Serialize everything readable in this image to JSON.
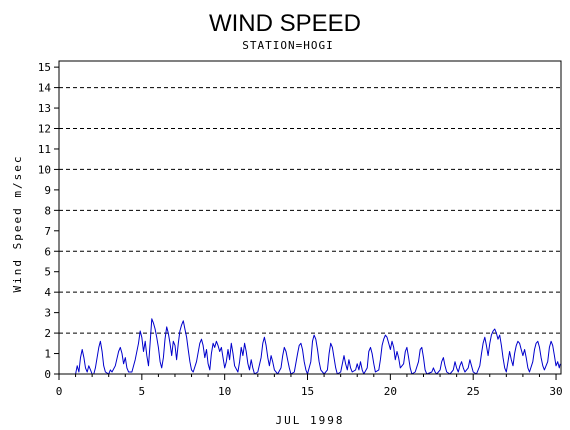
{
  "chart_data": {
    "type": "line",
    "title": "WIND SPEED",
    "subtitle": "STATION=HOGI",
    "xlabel": "JUL 1998",
    "ylabel": "Wind Speed m/sec",
    "xlim": [
      0,
      30.3
    ],
    "ylim": [
      0,
      15.3
    ],
    "x_ticks": [
      0,
      5,
      10,
      15,
      20,
      25,
      30
    ],
    "y_ticks": [
      0,
      1,
      2,
      3,
      4,
      5,
      6,
      7,
      8,
      9,
      10,
      11,
      12,
      13,
      14,
      15
    ],
    "grid": {
      "horizontal_dashed_at": [
        2,
        4,
        6,
        8,
        10,
        12,
        14
      ],
      "baseline_dashed": true
    },
    "line_color": "#0000cc",
    "series": [
      {
        "values": [
          [
            1.0,
            0.0
          ],
          [
            1.1,
            0.4
          ],
          [
            1.2,
            0.1
          ],
          [
            1.3,
            0.8
          ],
          [
            1.4,
            1.2
          ],
          [
            1.5,
            0.8
          ],
          [
            1.6,
            0.3
          ],
          [
            1.7,
            0.1
          ],
          [
            1.8,
            0.4
          ],
          [
            1.9,
            0.2
          ],
          [
            2.0,
            0.0
          ],
          [
            2.1,
            0.0
          ],
          [
            2.2,
            0.3
          ],
          [
            2.4,
            1.3
          ],
          [
            2.5,
            1.6
          ],
          [
            2.6,
            1.1
          ],
          [
            2.7,
            0.4
          ],
          [
            2.8,
            0.1
          ],
          [
            3.0,
            0.0
          ],
          [
            3.1,
            0.2
          ],
          [
            3.2,
            0.1
          ],
          [
            3.4,
            0.4
          ],
          [
            3.6,
            1.1
          ],
          [
            3.7,
            1.3
          ],
          [
            3.8,
            1.0
          ],
          [
            3.9,
            0.5
          ],
          [
            4.0,
            0.8
          ],
          [
            4.1,
            0.3
          ],
          [
            4.2,
            0.1
          ],
          [
            4.4,
            0.1
          ],
          [
            4.6,
            0.7
          ],
          [
            4.8,
            1.5
          ],
          [
            4.9,
            2.1
          ],
          [
            5.0,
            1.8
          ],
          [
            5.1,
            1.1
          ],
          [
            5.2,
            1.6
          ],
          [
            5.3,
            0.9
          ],
          [
            5.4,
            0.4
          ],
          [
            5.5,
            1.5
          ],
          [
            5.6,
            2.7
          ],
          [
            5.7,
            2.5
          ],
          [
            5.8,
            2.2
          ],
          [
            5.9,
            1.8
          ],
          [
            6.0,
            1.3
          ],
          [
            6.1,
            0.6
          ],
          [
            6.2,
            0.3
          ],
          [
            6.3,
            0.8
          ],
          [
            6.4,
            1.7
          ],
          [
            6.5,
            2.3
          ],
          [
            6.6,
            2.0
          ],
          [
            6.7,
            1.5
          ],
          [
            6.8,
            0.9
          ],
          [
            6.9,
            1.6
          ],
          [
            7.0,
            1.4
          ],
          [
            7.1,
            0.7
          ],
          [
            7.2,
            1.5
          ],
          [
            7.3,
            2.1
          ],
          [
            7.4,
            2.4
          ],
          [
            7.5,
            2.6
          ],
          [
            7.6,
            2.2
          ],
          [
            7.7,
            1.8
          ],
          [
            7.8,
            1.2
          ],
          [
            7.9,
            0.6
          ],
          [
            8.0,
            0.2
          ],
          [
            8.1,
            0.1
          ],
          [
            8.3,
            0.6
          ],
          [
            8.5,
            1.5
          ],
          [
            8.6,
            1.7
          ],
          [
            8.7,
            1.4
          ],
          [
            8.8,
            0.8
          ],
          [
            8.9,
            1.2
          ],
          [
            9.0,
            0.5
          ],
          [
            9.1,
            0.2
          ],
          [
            9.2,
            1.0
          ],
          [
            9.3,
            1.5
          ],
          [
            9.4,
            1.3
          ],
          [
            9.5,
            1.6
          ],
          [
            9.6,
            1.4
          ],
          [
            9.7,
            1.1
          ],
          [
            9.8,
            1.3
          ],
          [
            9.9,
            0.8
          ],
          [
            10.0,
            0.3
          ],
          [
            10.1,
            0.6
          ],
          [
            10.2,
            1.2
          ],
          [
            10.3,
            0.7
          ],
          [
            10.4,
            1.5
          ],
          [
            10.5,
            1.0
          ],
          [
            10.6,
            0.4
          ],
          [
            10.8,
            0.1
          ],
          [
            10.9,
            0.6
          ],
          [
            11.0,
            1.3
          ],
          [
            11.1,
            0.9
          ],
          [
            11.2,
            1.5
          ],
          [
            11.3,
            1.1
          ],
          [
            11.4,
            0.5
          ],
          [
            11.5,
            0.2
          ],
          [
            11.6,
            0.7
          ],
          [
            11.7,
            0.3
          ],
          [
            11.8,
            0.0
          ],
          [
            12.0,
            0.1
          ],
          [
            12.2,
            0.8
          ],
          [
            12.3,
            1.5
          ],
          [
            12.4,
            1.8
          ],
          [
            12.5,
            1.4
          ],
          [
            12.6,
            0.8
          ],
          [
            12.7,
            0.4
          ],
          [
            12.8,
            0.9
          ],
          [
            12.9,
            0.6
          ],
          [
            13.0,
            0.2
          ],
          [
            13.2,
            0.0
          ],
          [
            13.4,
            0.3
          ],
          [
            13.5,
            0.9
          ],
          [
            13.6,
            1.3
          ],
          [
            13.7,
            1.1
          ],
          [
            13.8,
            0.7
          ],
          [
            13.9,
            0.3
          ],
          [
            14.0,
            0.0
          ],
          [
            14.2,
            0.1
          ],
          [
            14.4,
            1.0
          ],
          [
            14.5,
            1.4
          ],
          [
            14.6,
            1.5
          ],
          [
            14.7,
            1.2
          ],
          [
            14.8,
            0.6
          ],
          [
            14.9,
            0.2
          ],
          [
            15.0,
            0.0
          ],
          [
            15.2,
            0.6
          ],
          [
            15.3,
            1.6
          ],
          [
            15.4,
            1.9
          ],
          [
            15.5,
            1.7
          ],
          [
            15.6,
            1.2
          ],
          [
            15.7,
            0.6
          ],
          [
            15.8,
            0.2
          ],
          [
            16.0,
            0.0
          ],
          [
            16.2,
            0.2
          ],
          [
            16.3,
            1.0
          ],
          [
            16.4,
            1.5
          ],
          [
            16.5,
            1.3
          ],
          [
            16.6,
            0.8
          ],
          [
            16.7,
            0.3
          ],
          [
            16.8,
            0.0
          ],
          [
            17.0,
            0.1
          ],
          [
            17.2,
            0.9
          ],
          [
            17.3,
            0.5
          ],
          [
            17.4,
            0.2
          ],
          [
            17.5,
            0.7
          ],
          [
            17.6,
            0.3
          ],
          [
            17.7,
            0.1
          ],
          [
            17.9,
            0.2
          ],
          [
            18.0,
            0.5
          ],
          [
            18.1,
            0.2
          ],
          [
            18.2,
            0.6
          ],
          [
            18.3,
            0.2
          ],
          [
            18.4,
            0.0
          ],
          [
            18.6,
            0.3
          ],
          [
            18.7,
            1.1
          ],
          [
            18.8,
            1.3
          ],
          [
            18.9,
            1.0
          ],
          [
            19.0,
            0.5
          ],
          [
            19.1,
            0.1
          ],
          [
            19.3,
            0.2
          ],
          [
            19.4,
            0.7
          ],
          [
            19.5,
            1.4
          ],
          [
            19.6,
            1.7
          ],
          [
            19.7,
            1.9
          ],
          [
            19.8,
            1.8
          ],
          [
            19.9,
            1.5
          ],
          [
            20.0,
            1.2
          ],
          [
            20.1,
            1.6
          ],
          [
            20.2,
            1.3
          ],
          [
            20.3,
            0.7
          ],
          [
            20.4,
            1.1
          ],
          [
            20.5,
            0.8
          ],
          [
            20.6,
            0.3
          ],
          [
            20.8,
            0.5
          ],
          [
            20.9,
            1.1
          ],
          [
            21.0,
            1.3
          ],
          [
            21.1,
            0.8
          ],
          [
            21.2,
            0.3
          ],
          [
            21.3,
            0.0
          ],
          [
            21.5,
            0.1
          ],
          [
            21.7,
            0.6
          ],
          [
            21.8,
            1.2
          ],
          [
            21.9,
            1.3
          ],
          [
            22.0,
            0.8
          ],
          [
            22.1,
            0.2
          ],
          [
            22.2,
            0.0
          ],
          [
            22.5,
            0.1
          ],
          [
            22.6,
            0.3
          ],
          [
            22.7,
            0.1
          ],
          [
            22.8,
            0.0
          ],
          [
            23.0,
            0.2
          ],
          [
            23.1,
            0.6
          ],
          [
            23.2,
            0.8
          ],
          [
            23.3,
            0.4
          ],
          [
            23.4,
            0.1
          ],
          [
            23.6,
            0.0
          ],
          [
            23.8,
            0.2
          ],
          [
            23.9,
            0.6
          ],
          [
            24.0,
            0.3
          ],
          [
            24.1,
            0.1
          ],
          [
            24.2,
            0.4
          ],
          [
            24.3,
            0.6
          ],
          [
            24.4,
            0.3
          ],
          [
            24.5,
            0.1
          ],
          [
            24.7,
            0.3
          ],
          [
            24.8,
            0.7
          ],
          [
            24.9,
            0.4
          ],
          [
            25.0,
            0.1
          ],
          [
            25.2,
            0.0
          ],
          [
            25.4,
            0.4
          ],
          [
            25.5,
            1.0
          ],
          [
            25.6,
            1.5
          ],
          [
            25.7,
            1.8
          ],
          [
            25.8,
            1.4
          ],
          [
            25.9,
            0.9
          ],
          [
            26.0,
            1.5
          ],
          [
            26.1,
            1.9
          ],
          [
            26.2,
            2.1
          ],
          [
            26.3,
            2.2
          ],
          [
            26.4,
            2.0
          ],
          [
            26.5,
            1.7
          ],
          [
            26.6,
            1.9
          ],
          [
            26.7,
            1.4
          ],
          [
            26.8,
            0.8
          ],
          [
            26.9,
            0.3
          ],
          [
            27.0,
            0.1
          ],
          [
            27.1,
            0.6
          ],
          [
            27.2,
            1.1
          ],
          [
            27.3,
            0.7
          ],
          [
            27.4,
            0.4
          ],
          [
            27.5,
            1.0
          ],
          [
            27.6,
            1.4
          ],
          [
            27.7,
            1.6
          ],
          [
            27.8,
            1.5
          ],
          [
            27.9,
            1.2
          ],
          [
            28.0,
            0.9
          ],
          [
            28.1,
            1.2
          ],
          [
            28.2,
            0.8
          ],
          [
            28.3,
            0.3
          ],
          [
            28.4,
            0.1
          ],
          [
            28.6,
            0.6
          ],
          [
            28.7,
            1.2
          ],
          [
            28.8,
            1.5
          ],
          [
            28.9,
            1.6
          ],
          [
            29.0,
            1.3
          ],
          [
            29.1,
            0.8
          ],
          [
            29.2,
            0.4
          ],
          [
            29.3,
            0.2
          ],
          [
            29.5,
            0.6
          ],
          [
            29.6,
            1.3
          ],
          [
            29.7,
            1.6
          ],
          [
            29.8,
            1.4
          ],
          [
            29.9,
            0.9
          ],
          [
            30.0,
            0.4
          ],
          [
            30.1,
            0.6
          ],
          [
            30.2,
            0.3
          ],
          [
            30.25,
            0.5
          ]
        ]
      }
    ]
  }
}
